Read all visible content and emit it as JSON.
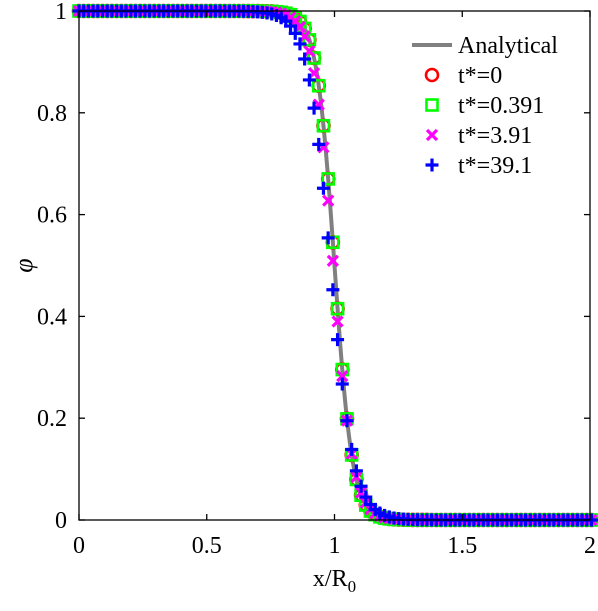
{
  "chart_data": {
    "type": "scatter",
    "xlabel": "x/R",
    "xlabel_sub": "0",
    "ylabel": "φ",
    "xlim": [
      0,
      2
    ],
    "ylim": [
      0,
      1
    ],
    "xticks": [
      0,
      0.5,
      1,
      1.5,
      2
    ],
    "xtick_labels": [
      "0",
      "0.5",
      "1",
      "1.5",
      "2"
    ],
    "yticks": [
      0,
      0.2,
      0.4,
      0.6,
      0.8,
      1
    ],
    "ytick_labels": [
      "0",
      "0.2",
      "0.4",
      "0.6",
      "0.8",
      "1"
    ],
    "grid": false,
    "legend_position": "top-right",
    "analytical": {
      "name": "Analytical",
      "color": "#808080",
      "center": 1.0,
      "width": 0.035
    },
    "series": [
      {
        "name": "t*=0",
        "marker": "circle",
        "color": "#ff0000",
        "x_start": 0,
        "x_end": 2,
        "step": 0.0184,
        "center": 1.0,
        "width": 0.035
      },
      {
        "name": "t*=0.391",
        "marker": "square",
        "color": "#00ff00",
        "x_start": 0,
        "x_end": 2,
        "step": 0.0184,
        "center": 1.0,
        "width": 0.035
      },
      {
        "name": "t*=3.91",
        "marker": "x",
        "color": "#ff00ff",
        "x_start": 0,
        "x_end": 2,
        "step": 0.0184,
        "center": 0.995,
        "width": 0.038
      },
      {
        "name": "t*=39.1",
        "marker": "plus",
        "color": "#0000ff",
        "x_start": 0,
        "x_end": 2,
        "step": 0.0184,
        "center": 0.985,
        "width": 0.045
      }
    ]
  }
}
